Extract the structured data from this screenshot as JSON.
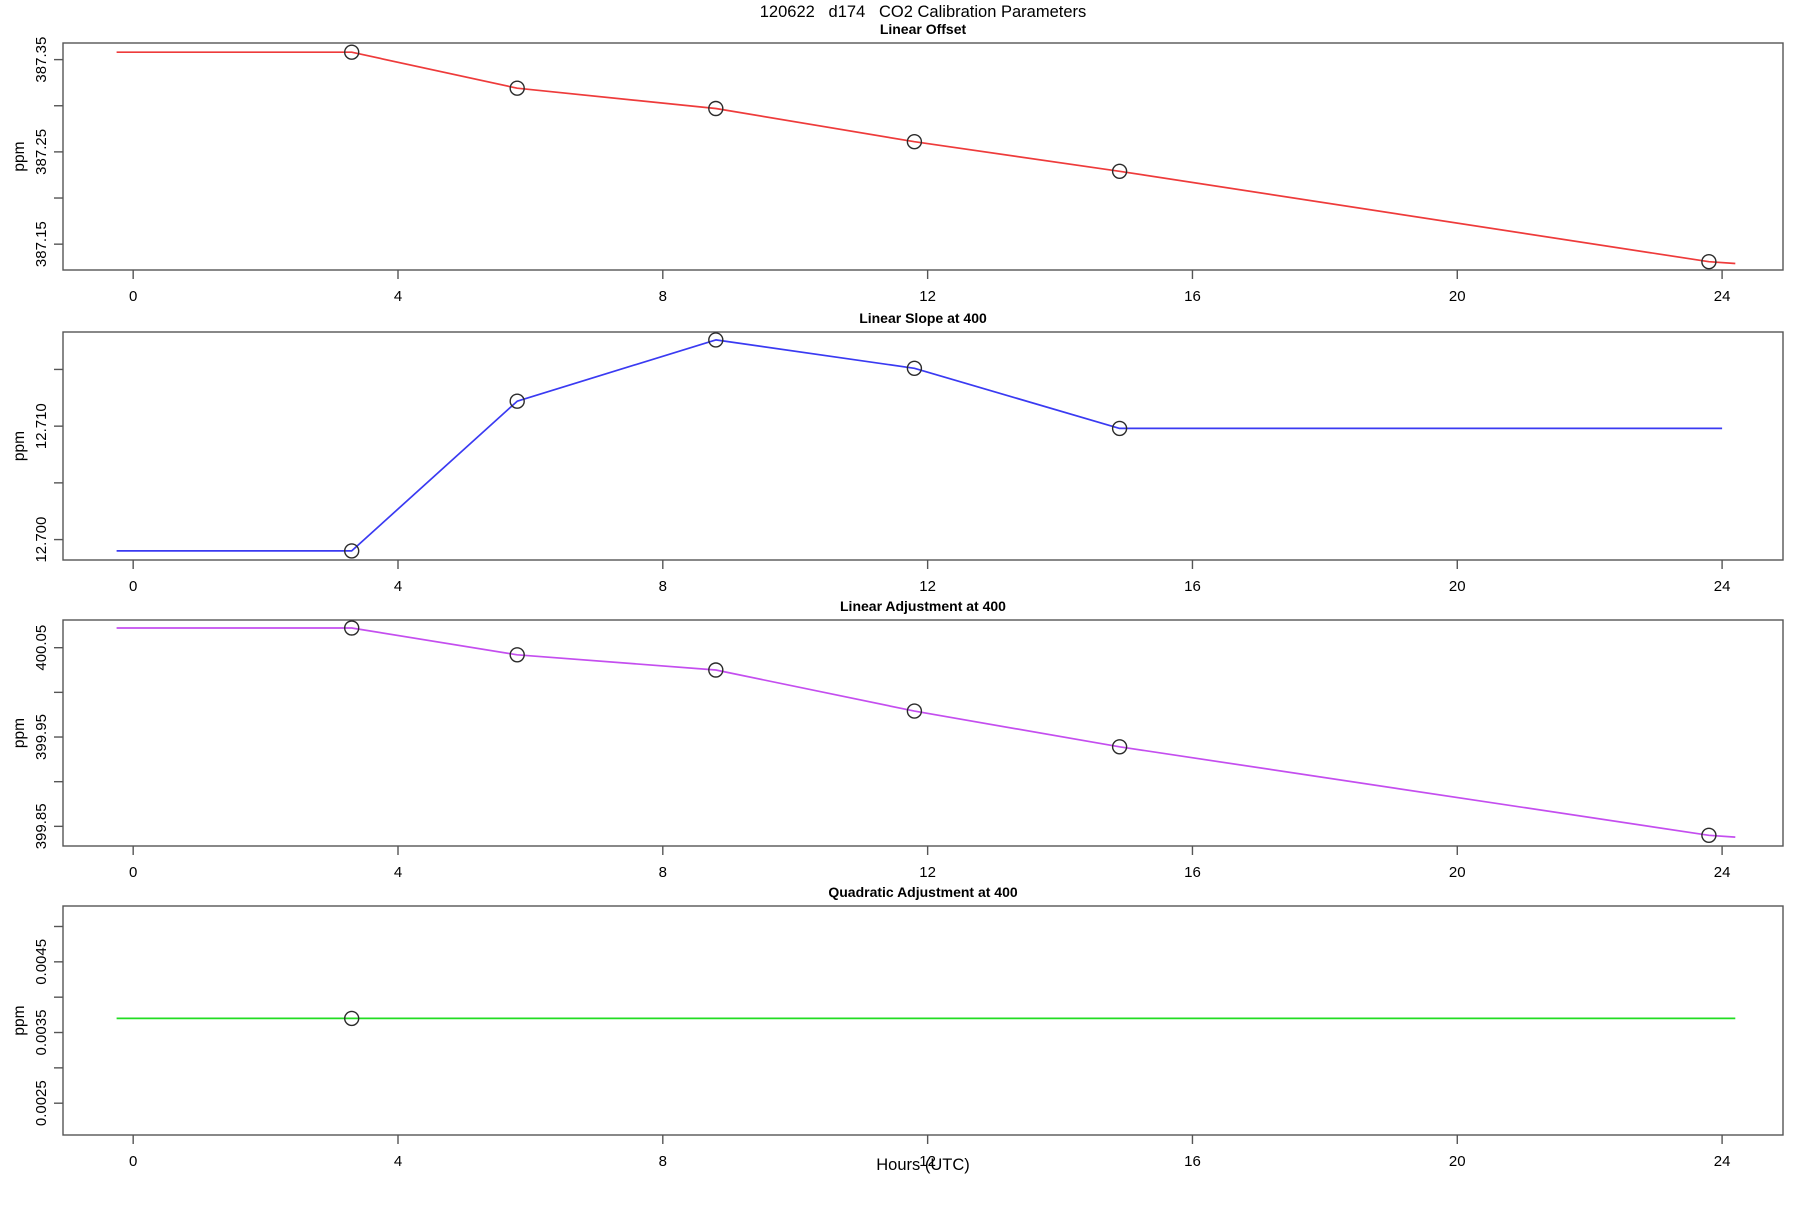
{
  "title": "120622   d174   CO2 Calibration Parameters",
  "xlabel": "Hours (UTC)",
  "ylabel": "ppm",
  "chart_data": [
    {
      "type": "line",
      "title": "Linear Offset",
      "ylabel": "ppm",
      "color": "#ee3b3b",
      "xlim": [
        -1.06,
        24.92
      ],
      "ylim": [
        387.122,
        387.368
      ],
      "xticks": [
        0,
        4,
        8,
        12,
        16,
        20,
        24
      ],
      "yticks": [
        387.15,
        387.2,
        387.25,
        387.3,
        387.35
      ],
      "ytick_labels": [
        "387.15",
        "387.25",
        "387.35"
      ],
      "line": [
        [
          -0.25,
          387.358
        ],
        [
          3.3,
          387.358
        ],
        [
          5.8,
          387.319
        ],
        [
          8.8,
          387.297
        ],
        [
          11.8,
          387.261
        ],
        [
          14.9,
          387.229
        ],
        [
          23.8,
          387.131
        ],
        [
          24.2,
          387.129
        ]
      ],
      "markers": [
        [
          3.3,
          387.358
        ],
        [
          5.8,
          387.319
        ],
        [
          8.8,
          387.297
        ],
        [
          11.8,
          387.261
        ],
        [
          14.9,
          387.229
        ],
        [
          23.8,
          387.131
        ]
      ]
    },
    {
      "type": "line",
      "title": "Linear Slope at 400",
      "ylabel": "ppm",
      "color": "#3a3af2",
      "xlim": [
        -1.06,
        24.92
      ],
      "ylim": [
        12.6982,
        12.7183
      ],
      "xticks": [
        0,
        4,
        8,
        12,
        16,
        20,
        24
      ],
      "yticks": [
        12.7,
        12.705,
        12.71,
        12.715
      ],
      "ytick_labels": [
        "12.700",
        "12.710"
      ],
      "line": [
        [
          -0.25,
          12.699
        ],
        [
          3.3,
          12.699
        ],
        [
          5.8,
          12.7122
        ],
        [
          8.8,
          12.7176
        ],
        [
          11.8,
          12.7151
        ],
        [
          14.9,
          12.7098
        ],
        [
          24.0,
          12.7098
        ]
      ],
      "markers": [
        [
          3.3,
          12.699
        ],
        [
          5.8,
          12.7122
        ],
        [
          8.8,
          12.7176
        ],
        [
          11.8,
          12.7151
        ],
        [
          14.9,
          12.7098
        ]
      ]
    },
    {
      "type": "line",
      "title": "Linear Adjustment at 400",
      "ylabel": "ppm",
      "color": "#c44eef",
      "xlim": [
        -1.06,
        24.92
      ],
      "ylim": [
        399.828,
        400.081
      ],
      "xticks": [
        0,
        4,
        8,
        12,
        16,
        20,
        24
      ],
      "yticks": [
        399.85,
        399.9,
        399.95,
        400.0,
        400.05
      ],
      "ytick_labels": [
        "399.85",
        "399.95",
        "400.05"
      ],
      "line": [
        [
          -0.25,
          400.072
        ],
        [
          3.3,
          400.072
        ],
        [
          5.8,
          400.042
        ],
        [
          8.8,
          400.025
        ],
        [
          11.8,
          399.979
        ],
        [
          14.9,
          399.939
        ],
        [
          23.8,
          399.84
        ],
        [
          24.2,
          399.838
        ]
      ],
      "markers": [
        [
          3.3,
          400.072
        ],
        [
          5.8,
          400.042
        ],
        [
          8.8,
          400.025
        ],
        [
          11.8,
          399.979
        ],
        [
          14.9,
          399.939
        ],
        [
          23.8,
          399.84
        ]
      ]
    },
    {
      "type": "line",
      "title": "Quadratic Adjustment at 400",
      "ylabel": "ppm",
      "color": "#22dd22",
      "xlim": [
        -1.06,
        24.92
      ],
      "ylim": [
        0.00205,
        0.00529
      ],
      "xticks": [
        0,
        4,
        8,
        12,
        16,
        20,
        24
      ],
      "yticks": [
        0.0025,
        0.003,
        0.0035,
        0.004,
        0.0045,
        0.005
      ],
      "ytick_labels": [
        "0.0025",
        "0.0035",
        "0.0045"
      ],
      "line": [
        [
          -0.25,
          0.0037
        ],
        [
          24.2,
          0.0037
        ]
      ],
      "markers": [
        [
          3.3,
          0.0037
        ]
      ]
    }
  ]
}
